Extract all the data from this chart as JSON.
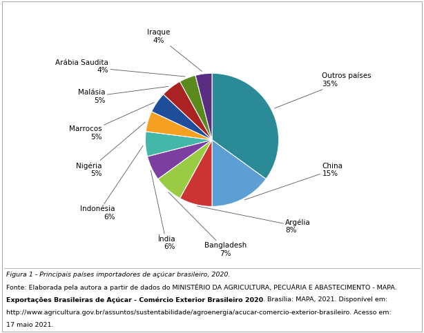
{
  "labels": [
    "Outros países",
    "China",
    "Argélia",
    "Bangladesh",
    "Índia",
    "Indonésia",
    "Nigéria",
    "Marrocos",
    "Malásia",
    "Arábia Saudita",
    "Iraque"
  ],
  "values": [
    35,
    15,
    8,
    7,
    6,
    6,
    5,
    5,
    5,
    4,
    4
  ],
  "colors": [
    "#2a8a96",
    "#5b9fd4",
    "#cc3333",
    "#99cc44",
    "#7b3fa0",
    "#44b8a8",
    "#f5a020",
    "#1e4d9a",
    "#aa2222",
    "#5a8a1e",
    "#5a2d82"
  ],
  "label_pcts": [
    "35%",
    "15%",
    "8%",
    "7%",
    "6%",
    "6%",
    "5%",
    "5%",
    "5%",
    "4%",
    "4%"
  ],
  "figure_caption_normal": "Figura 1 - Principais países importadores de açúcar brasileiro, 2020.",
  "source_line1": "Fonte: Elaborada pela autora a partir de dados do MINISTÉRIO DA AGRICULTURA, PECUÁRIA E ABASTECIMENTO - MAPA.",
  "source_line2_bold": "Exportações Brasileiras de Açúcar - Comércio Exterior Brasileiro 2020",
  "source_line2_rest": ". Brasília: MAPA, 2021. Disponível em:",
  "source_line3": "http://www.agricultura.gov.br/assuntos/sustentabilidade/agroenergia/acucar-comercio-exterior-brasileiro. Acesso em:",
  "source_line4": "17 maio 2021."
}
